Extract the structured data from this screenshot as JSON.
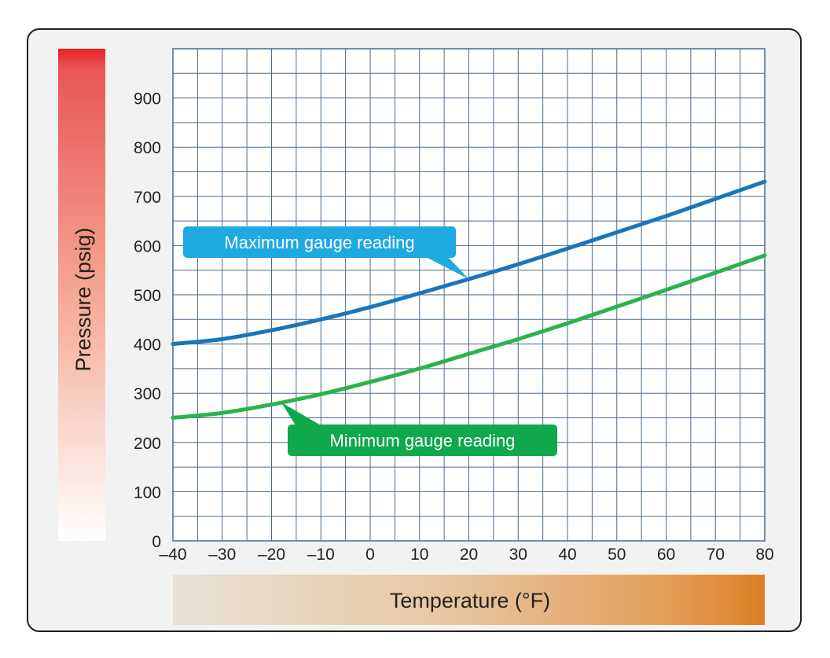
{
  "chart_data": {
    "type": "line",
    "xlabel": "Temperature (°F)",
    "ylabel": "Pressure (psig)",
    "xlim": [
      -40,
      80
    ],
    "ylim": [
      0,
      900
    ],
    "x_ticks": [
      -40,
      -30,
      -20,
      -10,
      0,
      10,
      20,
      30,
      40,
      50,
      60,
      70,
      80
    ],
    "x_tick_labels": [
      "–40",
      "–30",
      "–20",
      "–10",
      "0",
      "10",
      "20",
      "30",
      "40",
      "50",
      "60",
      "70",
      "80"
    ],
    "y_ticks": [
      0,
      100,
      200,
      300,
      400,
      500,
      600,
      700,
      800,
      900
    ],
    "y_tick_labels": [
      "0",
      "100",
      "200",
      "300",
      "400",
      "500",
      "600",
      "700",
      "800",
      "900"
    ],
    "grid": true,
    "x": [
      -40,
      -30,
      -20,
      -10,
      0,
      10,
      20,
      30,
      40,
      50,
      60,
      70,
      80
    ],
    "series": [
      {
        "name": "Maximum gauge reading",
        "color": "#1b75bb",
        "values": [
          400,
          410,
          428,
          450,
          475,
          503,
          532,
          562,
          594,
          627,
          660,
          695,
          730
        ]
      },
      {
        "name": "Minimum gauge reading",
        "color": "#2bb34b",
        "values": [
          250,
          260,
          277,
          298,
          323,
          350,
          380,
          410,
          442,
          476,
          510,
          545,
          580
        ]
      }
    ],
    "annotations": [
      {
        "text": "Maximum gauge reading",
        "series": 0,
        "x": 20,
        "color": "#1fa9e1"
      },
      {
        "text": "Minimum gauge reading",
        "series": 1,
        "x": -18,
        "color": "#0fa84a"
      }
    ],
    "colors": {
      "grid": "#4d6a8a",
      "ylabel_gradient_top": "#ec2227",
      "xlabel_gradient_end": "#dc7f22"
    }
  }
}
